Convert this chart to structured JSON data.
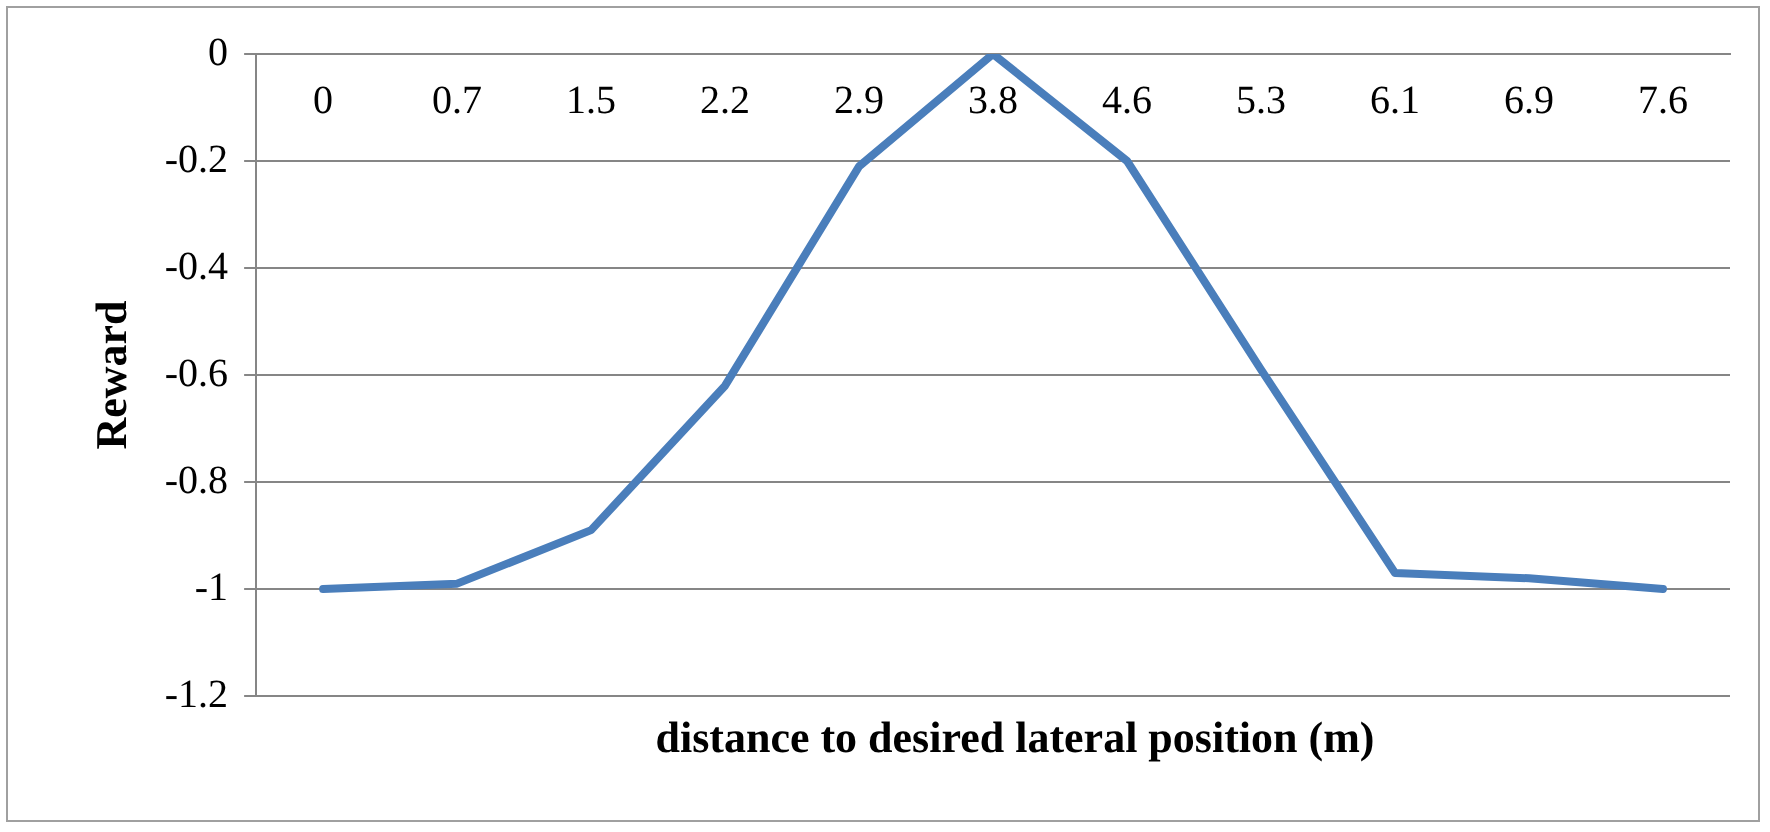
{
  "chart_data": {
    "type": "line",
    "xlabel": "distance to desired lateral position (m)",
    "ylabel": "Reward",
    "categories": [
      "0",
      "0.7",
      "1.5",
      "2.2",
      "2.9",
      "3.8",
      "4.6",
      "5.3",
      "6.1",
      "6.9",
      "7.6"
    ],
    "series": [
      {
        "color": "#4a7ebb",
        "values": [
          -1,
          -0.99,
          -0.89,
          -0.62,
          -0.21,
          0,
          -0.2,
          -0.59,
          -0.97,
          -0.98,
          -1
        ]
      }
    ],
    "ylim": [
      -1.2,
      0
    ],
    "yticks": [
      -1.2,
      -1,
      -0.8,
      -0.6,
      -0.4,
      -0.2,
      0
    ],
    "grid": "y",
    "legend": false,
    "marker": "none",
    "line_style": "solid"
  }
}
